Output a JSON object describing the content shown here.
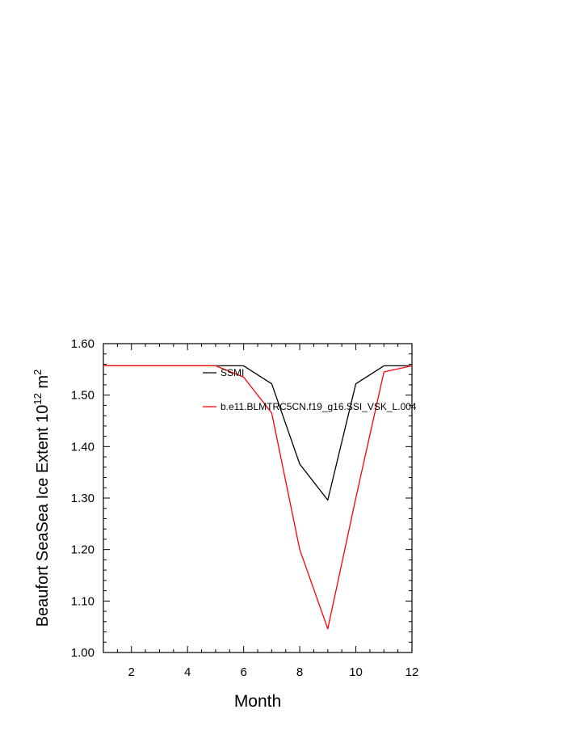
{
  "chart_data": {
    "type": "line",
    "title": "",
    "xlabel": "Month",
    "ylabel_main": "Beaufort SeaSea Ice Extent 10",
    "ylabel_exp": "12",
    "ylabel_unit": "m",
    "ylabel_unit_exp": "2",
    "xlim": [
      1,
      12
    ],
    "ylim": [
      1.0,
      1.6
    ],
    "x_ticks": [
      2,
      4,
      6,
      8,
      10,
      12
    ],
    "x_tick_labels": [
      "2",
      "4",
      "6",
      "8",
      "10",
      "12"
    ],
    "y_ticks": [
      1.0,
      1.1,
      1.2,
      1.3,
      1.4,
      1.5,
      1.6
    ],
    "y_tick_labels": [
      "1.00",
      "1.10",
      "1.20",
      "1.30",
      "1.40",
      "1.50",
      "1.60"
    ],
    "x": [
      1,
      2,
      3,
      4,
      5,
      6,
      7,
      8,
      9,
      10,
      11,
      12
    ],
    "series": [
      {
        "name": "SSMI",
        "color": "#000000",
        "values": [
          1.557,
          1.557,
          1.557,
          1.557,
          1.557,
          1.557,
          1.522,
          1.366,
          1.296,
          1.522,
          1.557,
          1.557
        ]
      },
      {
        "name": "b.e11.BLMTRC5CN.f19_g16.SSI_VSK_L.004",
        "color": "#ff0000",
        "values": [
          1.557,
          1.557,
          1.557,
          1.557,
          1.557,
          1.535,
          1.465,
          1.2,
          1.046,
          1.3,
          1.545,
          1.557
        ]
      }
    ],
    "legend_position": "inside-top"
  }
}
